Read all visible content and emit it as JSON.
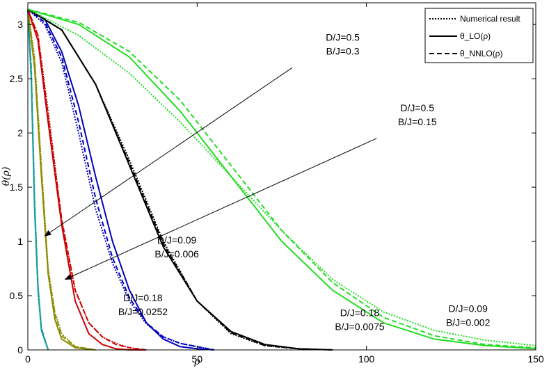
{
  "chart_data": {
    "type": "line",
    "xlabel": "ρ",
    "ylabel": "θ(ρ)",
    "xlim": [
      0,
      150
    ],
    "ylim": [
      0,
      3.2
    ],
    "x_ticks": [
      0,
      50,
      100,
      150
    ],
    "y_ticks": [
      0,
      0.5,
      1,
      1.5,
      2,
      2.5,
      3
    ],
    "grid": false,
    "legend_position": "top-right",
    "legend": [
      {
        "label": "Numerical result",
        "style": "dotted"
      },
      {
        "label": "θ_LO(ρ)",
        "style": "solid"
      },
      {
        "label": "θ_NNLO(ρ)",
        "style": "dashed"
      }
    ],
    "series": [
      {
        "name": "D/J=0.5, B/J=0.3",
        "color": "#1a9c9c",
        "styles": [
          "dotted",
          "solid",
          "dashed"
        ],
        "x": [
          0,
          1,
          2,
          3,
          4,
          6
        ],
        "numerical": [
          3.14,
          2.6,
          1.4,
          0.6,
          0.2,
          0
        ],
        "lo": [
          3.14,
          2.5,
          1.3,
          0.55,
          0.18,
          0
        ],
        "nnlo": [
          3.14,
          2.6,
          1.35,
          0.58,
          0.2,
          0
        ]
      },
      {
        "name": "D/J=0.5, B/J=0.15",
        "color": "#8c8c00",
        "styles": [
          "dotted",
          "solid",
          "dashed"
        ],
        "x": [
          0,
          2,
          4,
          6,
          8,
          10,
          14,
          20
        ],
        "numerical": [
          3.14,
          2.7,
          1.7,
          0.75,
          0.35,
          0.15,
          0.03,
          0
        ],
        "lo": [
          3.14,
          2.6,
          1.6,
          0.7,
          0.28,
          0.1,
          0.02,
          0
        ],
        "nnlo": [
          3.14,
          2.65,
          1.65,
          0.72,
          0.33,
          0.13,
          0.03,
          0
        ]
      },
      {
        "name": "D/J=0.18, B/J=0.0252",
        "color": "#cc0000",
        "styles": [
          "dotted",
          "solid",
          "dashed"
        ],
        "x": [
          0,
          3,
          6,
          10,
          14,
          18,
          22,
          26,
          30,
          35
        ],
        "numerical": [
          3.14,
          2.9,
          2.2,
          1.2,
          0.55,
          0.25,
          0.12,
          0.06,
          0.02,
          0
        ],
        "lo": [
          3.14,
          2.85,
          2.1,
          1.15,
          0.45,
          0.15,
          0.05,
          0.01,
          0,
          0
        ],
        "nnlo": [
          3.14,
          2.9,
          2.15,
          1.2,
          0.55,
          0.25,
          0.12,
          0.05,
          0.02,
          0
        ]
      },
      {
        "name": "D/J=0.09, B/J=0.006",
        "color": "#0000bb",
        "styles": [
          "dotted",
          "solid",
          "dashed"
        ],
        "x": [
          0,
          5,
          10,
          15,
          20,
          25,
          30,
          35,
          40,
          45,
          50,
          55
        ],
        "numerical": [
          3.14,
          3.0,
          2.65,
          2.0,
          1.3,
          0.8,
          0.45,
          0.24,
          0.12,
          0.06,
          0.03,
          0
        ],
        "lo": [
          3.14,
          3.05,
          2.75,
          2.25,
          1.6,
          1.0,
          0.55,
          0.25,
          0.1,
          0.03,
          0.01,
          0
        ],
        "nnlo": [
          3.14,
          3.02,
          2.7,
          2.1,
          1.4,
          0.85,
          0.48,
          0.25,
          0.12,
          0.06,
          0.03,
          0
        ]
      },
      {
        "name": "D/J=0.18, B/J=0.0075",
        "color": "#000000",
        "styles": [
          "dotted",
          "solid",
          "dashed"
        ],
        "x": [
          0,
          10,
          20,
          30,
          40,
          50,
          60,
          70,
          80,
          90
        ],
        "numerical": [
          3.14,
          2.95,
          2.45,
          1.75,
          1.0,
          0.45,
          0.15,
          0.04,
          0.01,
          0
        ],
        "lo": [
          3.14,
          2.95,
          2.45,
          1.7,
          0.95,
          0.45,
          0.17,
          0.05,
          0.01,
          0
        ],
        "nnlo": [
          3.14,
          2.95,
          2.45,
          1.72,
          0.98,
          0.45,
          0.16,
          0.04,
          0.01,
          0
        ]
      },
      {
        "name": "D/J=0.09, B/J=0.002",
        "color": "#22dd22",
        "styles": [
          "dotted",
          "solid",
          "dashed"
        ],
        "x": [
          0,
          15,
          30,
          45,
          60,
          75,
          90,
          105,
          120,
          135,
          150
        ],
        "numerical": [
          3.14,
          2.9,
          2.55,
          2.1,
          1.6,
          1.1,
          0.65,
          0.35,
          0.18,
          0.09,
          0.04
        ],
        "lo": [
          3.14,
          3.0,
          2.7,
          2.2,
          1.6,
          1.0,
          0.55,
          0.25,
          0.1,
          0.04,
          0.01
        ],
        "nnlo": [
          3.14,
          3.02,
          2.75,
          2.3,
          1.7,
          1.1,
          0.62,
          0.3,
          0.13,
          0.05,
          0.02
        ]
      }
    ],
    "annotations": [
      {
        "lines": [
          "D/J=0.5",
          "B/J=0.3"
        ],
        "text_at": [
          93,
          2.85
        ],
        "arrow_from": [
          78,
          2.6
        ],
        "arrow_to": [
          5,
          1.05
        ]
      },
      {
        "lines": [
          "D/J=0.5",
          "B/J=0.15"
        ],
        "text_at": [
          115,
          2.2
        ],
        "arrow_from": [
          103,
          1.95
        ],
        "arrow_to": [
          11,
          0.65
        ]
      },
      {
        "lines": [
          "D/J=0.09",
          "B/J=0.006"
        ],
        "text_at": [
          44,
          0.98
        ],
        "arrow_from": null,
        "arrow_to": null
      },
      {
        "lines": [
          "D/J=0.18",
          "B/J=0.0252"
        ],
        "text_at": [
          34,
          0.45
        ],
        "arrow_from": null,
        "arrow_to": null
      },
      {
        "lines": [
          "D/J=0.18",
          "B/J=0.0075"
        ],
        "text_at": [
          98,
          0.31
        ],
        "arrow_from": null,
        "arrow_to": null
      },
      {
        "lines": [
          "D/J=0.09",
          "B/J=0.002"
        ],
        "text_at": [
          130,
          0.35
        ],
        "arrow_from": null,
        "arrow_to": null
      }
    ]
  }
}
